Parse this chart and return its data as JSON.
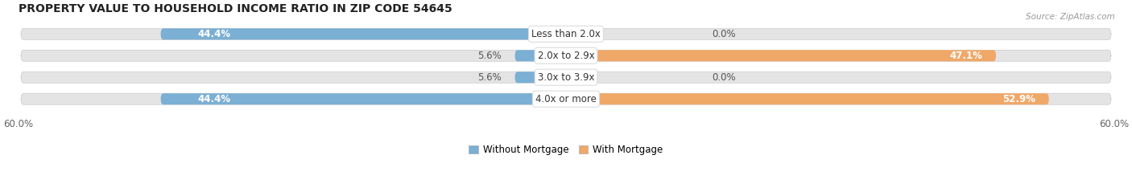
{
  "title": "PROPERTY VALUE TO HOUSEHOLD INCOME RATIO IN ZIP CODE 54645",
  "source": "Source: ZipAtlas.com",
  "categories": [
    "Less than 2.0x",
    "2.0x to 2.9x",
    "3.0x to 3.9x",
    "4.0x or more"
  ],
  "without_mortgage": [
    44.4,
    5.6,
    5.6,
    44.4
  ],
  "with_mortgage": [
    0.0,
    47.1,
    0.0,
    52.9
  ],
  "max_val": 60.0,
  "axis_label": "60.0%",
  "color_without": "#7bafd4",
  "color_with": "#f0a868",
  "color_bar_bg": "#e4e4e4",
  "bar_height": 0.52,
  "figsize": [
    14.06,
    2.34
  ],
  "dpi": 100,
  "title_fontsize": 10,
  "label_fontsize": 8.5,
  "cat_fontsize": 8.5,
  "tick_fontsize": 8.5,
  "legend_fontsize": 8.5
}
